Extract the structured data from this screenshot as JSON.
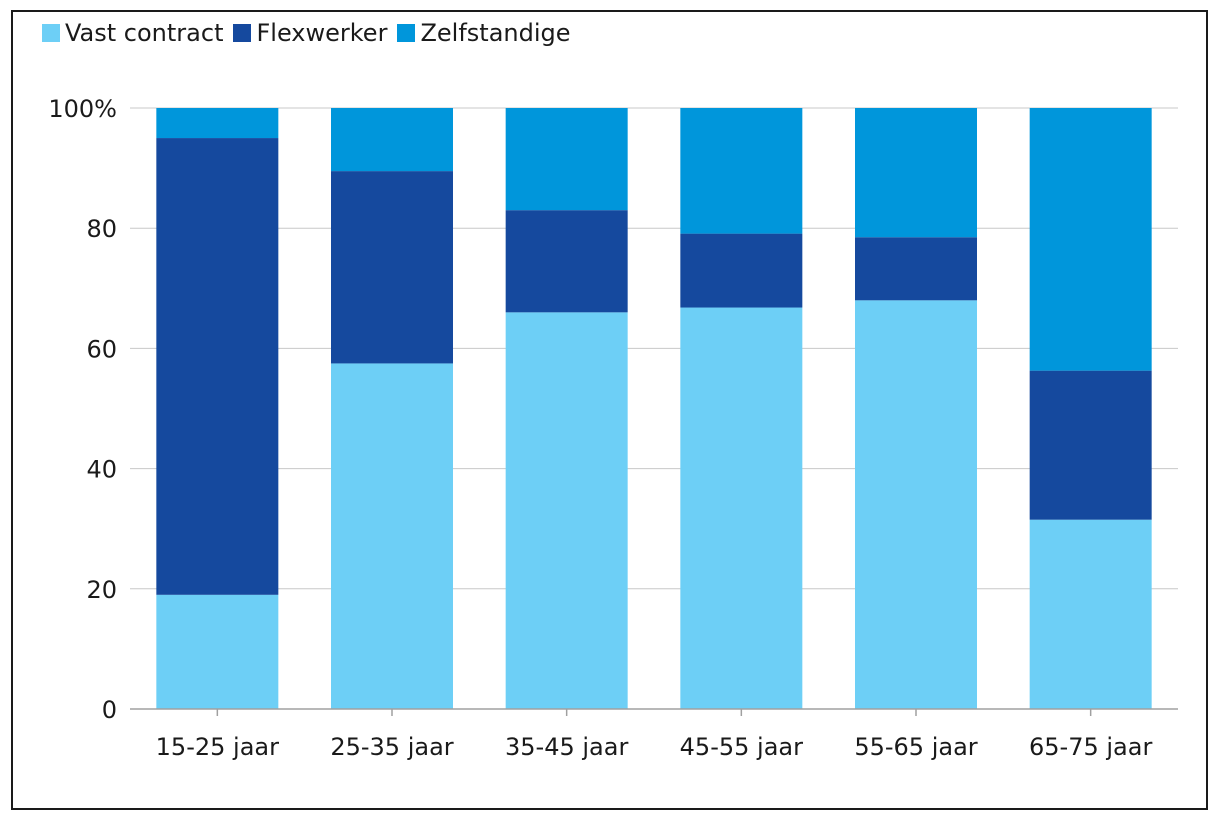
{
  "chart_data": {
    "type": "bar",
    "stacked": true,
    "categories": [
      "15-25 jaar",
      "25-35 jaar",
      "35-45 jaar",
      "45-55 jaar",
      "55-65 jaar",
      "65-75 jaar"
    ],
    "series": [
      {
        "name": "Vast contract",
        "color": "#6dcff6",
        "values": [
          19,
          57.5,
          66,
          66.8,
          68,
          31.5
        ]
      },
      {
        "name": "Flexwerker",
        "color": "#15499e",
        "values": [
          76,
          32,
          17,
          12.3,
          10.5,
          24.8
        ]
      },
      {
        "name": "Zelfstandige",
        "color": "#0096db",
        "values": [
          5,
          10.5,
          17,
          20.9,
          21.5,
          43.7
        ]
      }
    ],
    "ylim": [
      0,
      100
    ],
    "yticks": [
      "0",
      "20",
      "40",
      "60",
      "80",
      "100%"
    ],
    "grid": true,
    "legend_position": "top-left"
  }
}
